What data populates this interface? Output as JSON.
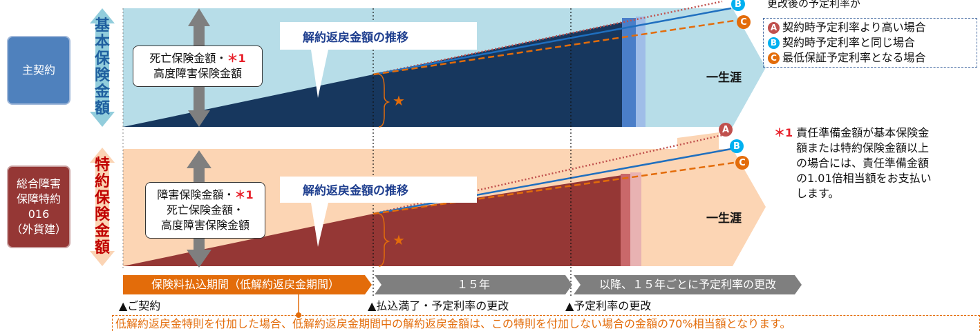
{
  "legend": {
    "title": "更改後の予定利率が",
    "items": [
      {
        "mark": "A",
        "text": "契約時予定利率より高い場合"
      },
      {
        "mark": "B",
        "text": "契約時予定利率と同じ場合"
      },
      {
        "mark": "C",
        "text": "最低保証予定利率となる場合"
      }
    ]
  },
  "main_contract": {
    "name": "主契約",
    "vertical_label": "基本保険金額",
    "amount_lines": [
      "死亡保険金額・",
      "高度障害保険金額"
    ],
    "asterisk": "＊1",
    "callout": "解約返戻金額の推移",
    "lifetime": "一生涯",
    "star": "★"
  },
  "rider": {
    "name_lines": [
      "総合障害",
      "保障特約",
      "016",
      "（外貨建）"
    ],
    "vertical_label": "特約保険金額",
    "amount_lines": [
      "障害保険金額・",
      "死亡保険金額・",
      "高度障害保険金額"
    ],
    "asterisk": "＊1",
    "callout": "解約返戻金額の推移",
    "lifetime": "一生涯",
    "star": "★"
  },
  "marks": [
    "A",
    "B",
    "C"
  ],
  "timeline": {
    "phases": [
      "保険料払込期間（低解約返戻金期間）",
      "１５年",
      "以降、１５年ごとに予定利率の更改"
    ],
    "milestones": [
      "▲ご契約",
      "▲払込満了・予定利率の更改",
      "▲予定利率の更改"
    ]
  },
  "footnote": {
    "mark": "＊1",
    "lines": [
      "責任準備金額が基本保険金",
      "額または特約保険金額以上",
      "の場合には、責任準備金額",
      "の1.01倍相当額をお支払い",
      "します。"
    ]
  },
  "bottom_note": "低解約返戻金特則を付加した場合、低解約返戻金期間中の解約返戻金額は、この特則を付加しない場合の金額の70%相当額となります。",
  "colors": {
    "main_band": "#b7dde8",
    "main_fill": "#17375e",
    "rider_band": "#fcd5b4",
    "rider_fill": "#953735",
    "rate_a": "#c0504d",
    "rate_b": "#1f6fbf",
    "rate_c": "#e36c0a",
    "phase1": "#e36c0a",
    "phase_gray": "#7f7f7f"
  }
}
